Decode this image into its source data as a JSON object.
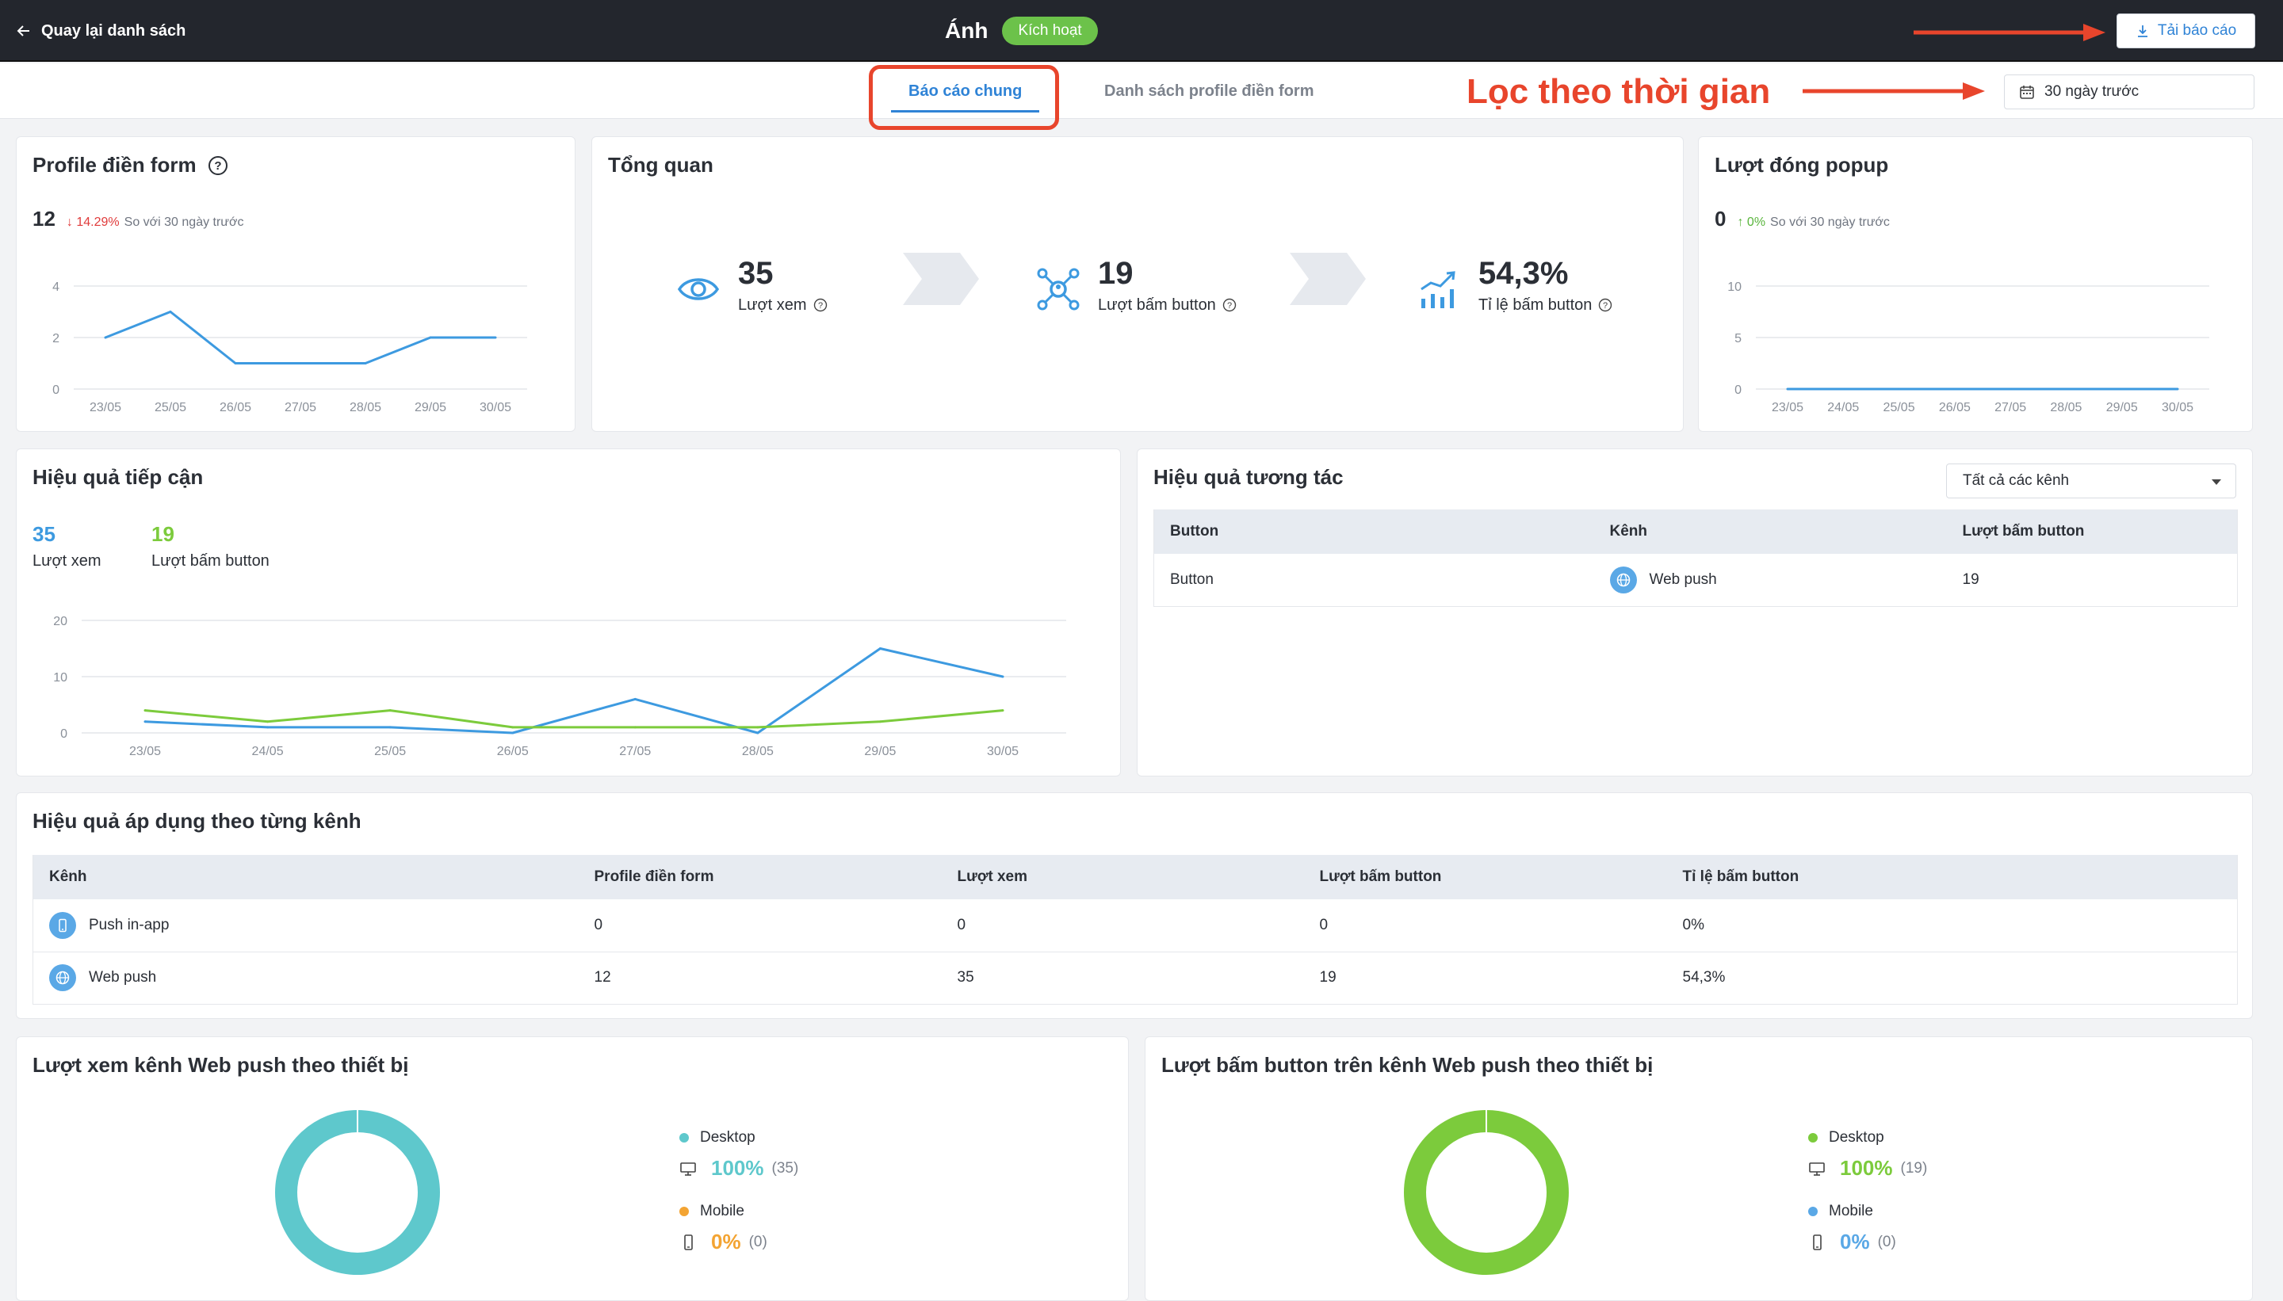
{
  "topbar": {
    "back_label": "Quay lại danh sách",
    "title": "Ánh",
    "status": "Kích hoạt",
    "download_label": "Tải báo cáo"
  },
  "tabs": {
    "general": "Báo cáo chung",
    "profiles": "Danh sách profile điền form"
  },
  "annotation": {
    "text": "Lọc theo thời gian",
    "color": "#e8452c"
  },
  "date_filter": {
    "value": "30 ngày trước"
  },
  "profile_card": {
    "title": "Profile điền form",
    "value": "12",
    "change": "14.29%",
    "note": "So với 30 ngày trước"
  },
  "overview": {
    "title": "Tổng quan",
    "items": [
      {
        "value": "35",
        "label": "Lượt xem",
        "icon": "eye-icon"
      },
      {
        "value": "19",
        "label": "Lượt bấm button",
        "icon": "network-icon"
      },
      {
        "value": "54,3%",
        "label": "Tỉ lệ bấm button",
        "icon": "bar-chart-icon"
      }
    ]
  },
  "close_card": {
    "title": "Lượt đóng popup",
    "value": "0",
    "change": "0%",
    "note": "So với 30 ngày trước"
  },
  "reach": {
    "title": "Hiệu quả tiếp cận",
    "views": "35",
    "views_label": "Lượt xem",
    "clicks": "19",
    "clicks_label": "Lượt bấm button"
  },
  "interaction": {
    "title": "Hiệu quả tương tác",
    "select_value": "Tất cả các kênh",
    "columns": [
      "Button",
      "Kênh",
      "Lượt bấm button"
    ],
    "rows": [
      {
        "button": "Button",
        "channel": "Web push",
        "clicks": "19"
      }
    ]
  },
  "channels": {
    "title": "Hiệu quả áp dụng theo từng kênh",
    "columns": [
      "Kênh",
      "Profile điền form",
      "Lượt xem",
      "Lượt bấm button",
      "Tỉ lệ bấm button"
    ],
    "rows": [
      {
        "name": "Push in-app",
        "profiles": "0",
        "views": "0",
        "clicks": "0",
        "rate": "0%"
      },
      {
        "name": "Web push",
        "profiles": "12",
        "views": "35",
        "clicks": "19",
        "rate": "54,3%"
      }
    ]
  },
  "views_device": {
    "title": "Lượt xem kênh Web push theo thiết bị",
    "desktop_label": "Desktop",
    "desktop_pct": "100%",
    "desktop_count": "(35)",
    "mobile_label": "Mobile",
    "mobile_pct": "0%",
    "mobile_count": "(0)"
  },
  "clicks_device": {
    "title": "Lượt bấm button trên kênh Web push theo thiết bị",
    "desktop_label": "Desktop",
    "desktop_pct": "100%",
    "desktop_count": "(19)",
    "mobile_label": "Mobile",
    "mobile_pct": "0%",
    "mobile_count": "(0)"
  },
  "colors": {
    "blue": "#3d9ae0",
    "green": "#7ccb3c",
    "teal": "#5ec8cc",
    "orange": "#f3a433",
    "red": "#e03b3b"
  },
  "chart_data": [
    {
      "type": "line",
      "name": "profile",
      "categories": [
        "23/05",
        "25/05",
        "26/05",
        "27/05",
        "28/05",
        "29/05",
        "30/05"
      ],
      "series": [
        {
          "name": "Profile điền form",
          "values": [
            2,
            3,
            1,
            1,
            1,
            2,
            2
          ],
          "color": "#3d9ae0"
        }
      ],
      "yticks": [
        0,
        2,
        4
      ],
      "ylim": [
        0,
        4
      ]
    },
    {
      "type": "line",
      "name": "close",
      "categories": [
        "23/05",
        "24/05",
        "25/05",
        "26/05",
        "27/05",
        "28/05",
        "29/05",
        "30/05"
      ],
      "series": [
        {
          "name": "Lượt đóng popup",
          "values": [
            0,
            0,
            0,
            0,
            0,
            0,
            0,
            0
          ],
          "color": "#3d9ae0"
        }
      ],
      "yticks": [
        0,
        5,
        10
      ],
      "ylim": [
        0,
        10
      ]
    },
    {
      "type": "line",
      "name": "reach",
      "categories": [
        "23/05",
        "24/05",
        "25/05",
        "26/05",
        "27/05",
        "28/05",
        "29/05",
        "30/05"
      ],
      "series": [
        {
          "name": "Lượt xem",
          "values": [
            2,
            1,
            1,
            0,
            6,
            0,
            15,
            10
          ],
          "color": "#3d9ae0"
        },
        {
          "name": "Lượt bấm button",
          "values": [
            4,
            2,
            4,
            1,
            1,
            1,
            2,
            4
          ],
          "color": "#7ccb3c"
        }
      ],
      "yticks": [
        0,
        10,
        20
      ],
      "ylim": [
        0,
        20
      ]
    },
    {
      "type": "pie",
      "name": "views_device",
      "categories": [
        "Desktop",
        "Mobile"
      ],
      "values": [
        35,
        0
      ],
      "colors": [
        "#5ec8cc",
        "#f3a433"
      ]
    },
    {
      "type": "pie",
      "name": "clicks_device",
      "categories": [
        "Desktop",
        "Mobile"
      ],
      "values": [
        19,
        0
      ],
      "colors": [
        "#7ccb3c",
        "#5aa8e6"
      ]
    }
  ]
}
